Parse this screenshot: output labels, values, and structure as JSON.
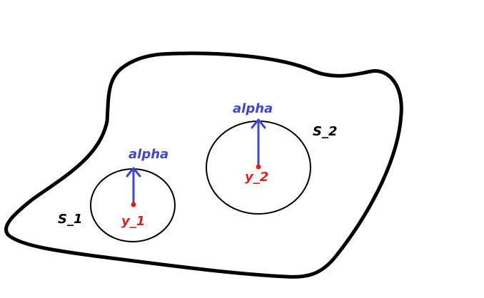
{
  "labels": {
    "outer_region": "S_1",
    "inner_region": "S_2",
    "point_1": "y_1",
    "point_2": "y_2",
    "arrow_1": "alpha",
    "arrow_2": "alpha"
  },
  "colors": {
    "outline": "#000000",
    "label_dark": "#000000",
    "point": "#e02020",
    "arrow": "#3f48cc"
  }
}
